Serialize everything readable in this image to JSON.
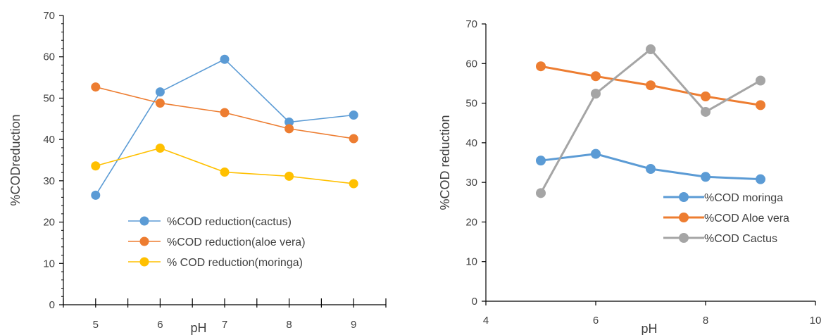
{
  "chart_data": [
    {
      "type": "line",
      "title": "",
      "xlabel": "pH",
      "ylabel": "%CODreduction",
      "x": [
        5,
        6,
        7,
        8,
        9
      ],
      "xlim": [
        4.5,
        9.5
      ],
      "ylim": [
        0,
        70
      ],
      "y_ticks": [
        0,
        10,
        20,
        30,
        40,
        50,
        60,
        70
      ],
      "x_tick_labels": [
        "5",
        "6",
        "7",
        "8",
        "9"
      ],
      "grid": false,
      "legend_position": "bottom-center",
      "series": [
        {
          "name": "%COD reduction(cactus)",
          "color": "#5B9BD5",
          "values": [
            26.5,
            51.5,
            59.4,
            44.2,
            45.9
          ]
        },
        {
          "name": "%COD reduction(aloe vera)",
          "color": "#ED7D31",
          "values": [
            52.7,
            48.8,
            46.5,
            42.6,
            40.2
          ]
        },
        {
          "name": "% COD reduction(moringa)",
          "color": "#FFC000",
          "values": [
            33.6,
            37.9,
            32.1,
            31.1,
            29.3
          ]
        }
      ]
    },
    {
      "type": "line",
      "title": "",
      "xlabel": "pH",
      "ylabel": "%COD reduction",
      "x": [
        5,
        6,
        7,
        8,
        9
      ],
      "xlim": [
        4,
        10
      ],
      "ylim": [
        0,
        70
      ],
      "y_ticks": [
        0,
        10,
        20,
        30,
        40,
        50,
        60,
        70
      ],
      "x_tick_labels": [
        "4",
        "6",
        "8",
        "10"
      ],
      "grid": false,
      "legend_position": "bottom-right",
      "series": [
        {
          "name": "%COD moringa",
          "color": "#5B9BD5",
          "values": [
            35.5,
            37.2,
            33.4,
            31.4,
            30.8
          ]
        },
        {
          "name": "%COD Aloe vera",
          "color": "#ED7D31",
          "values": [
            59.3,
            56.8,
            54.5,
            51.7,
            49.5
          ]
        },
        {
          "name": "%COD Cactus",
          "color": "#A5A5A5",
          "values": [
            27.3,
            52.4,
            63.6,
            47.8,
            55.7
          ]
        }
      ]
    }
  ]
}
